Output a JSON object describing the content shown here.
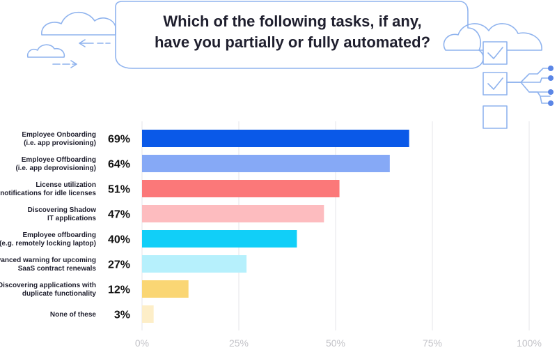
{
  "title": {
    "line1": "Which of the following tasks, if any,",
    "line2": "have you partially or fully automated?"
  },
  "icons": [
    "cloud-icon",
    "arrow-left-icon",
    "arrow-right-icon",
    "checkbox-checked-icon",
    "checkbox-empty-icon",
    "connector-nodes-icon"
  ],
  "colors": {
    "deco_stroke": "#8fb3ee",
    "grid": "#e6e6ea",
    "tick_text": "#c3c3c8",
    "label_text": "#1f1f2e"
  },
  "chart_data": {
    "type": "bar",
    "orientation": "horizontal",
    "categories": [
      [
        "Employee Onboarding",
        "(i.e. app provisioning)"
      ],
      [
        "Employee Offboarding",
        "(i.e. app deprovisioning)"
      ],
      [
        "License utilization",
        "notifications for idle licenses"
      ],
      [
        "Discovering Shadow",
        "IT applications"
      ],
      [
        "Employee offboarding",
        "(e.g. remotely locking laptop)"
      ],
      [
        "Advanced warning for upcoming",
        "SaaS contract renewals"
      ],
      [
        "Discovering applications with",
        "duplicate functionality"
      ],
      [
        "None of these"
      ]
    ],
    "values": [
      69,
      64,
      51,
      47,
      40,
      27,
      12,
      3
    ],
    "value_labels": [
      "69%",
      "64%",
      "51%",
      "47%",
      "40%",
      "27%",
      "12%",
      "3%"
    ],
    "bar_colors": [
      "#0a59e8",
      "#86a9f6",
      "#fb7879",
      "#fdbcbf",
      "#11cff8",
      "#b6f0fc",
      "#fad674",
      "#fdeec8"
    ],
    "xlim": [
      0,
      100
    ],
    "xticks": [
      "0%",
      "25%",
      "50%",
      "75%",
      "100%"
    ],
    "grid": true,
    "title": "Which of the following tasks, if any, have you partially or fully automated?"
  }
}
